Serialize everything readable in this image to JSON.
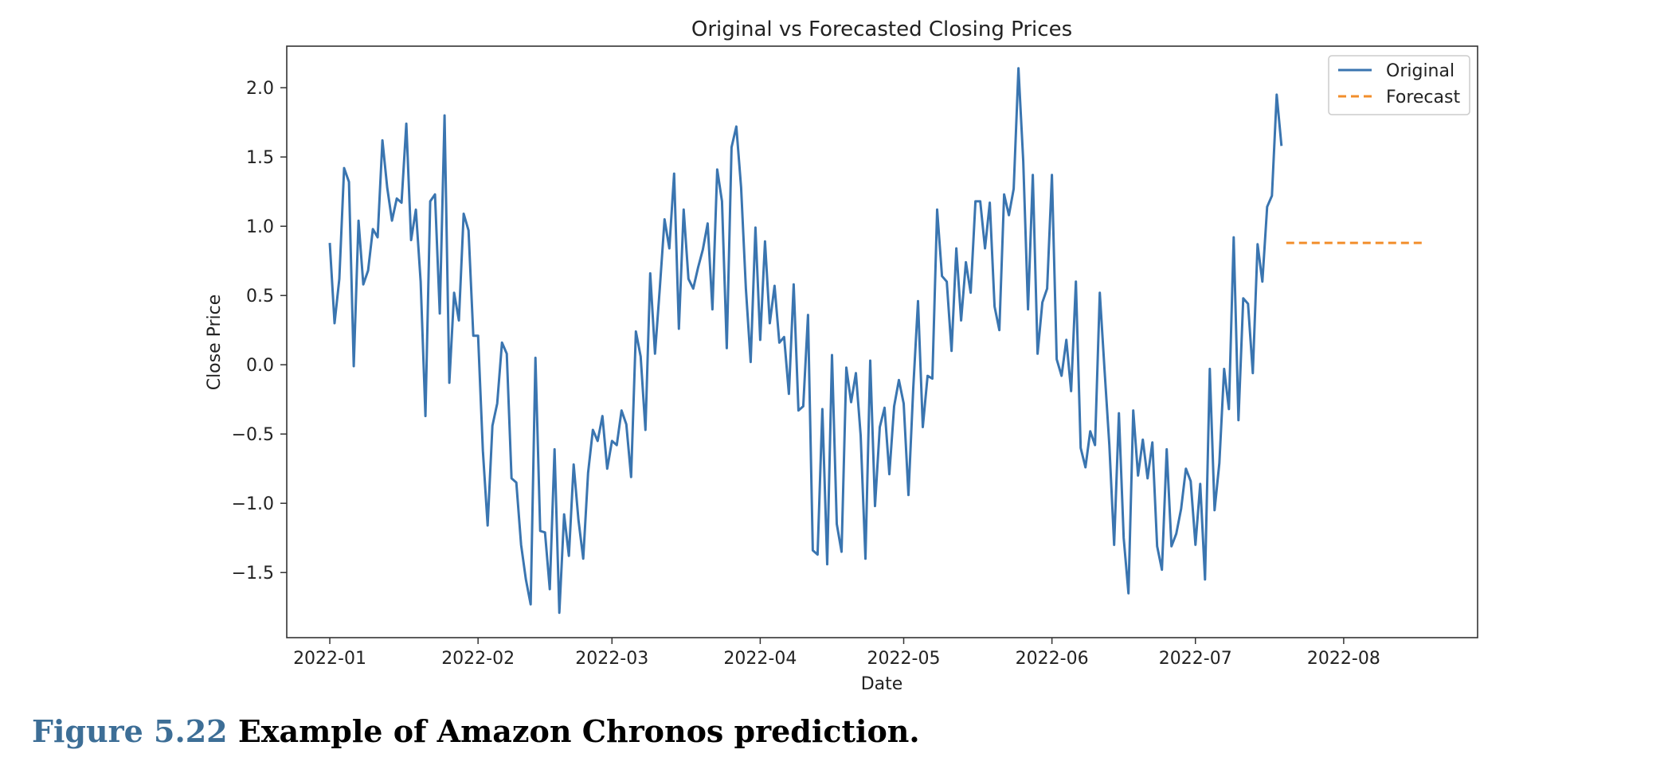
{
  "caption": {
    "figure_number": "Figure 5.22",
    "text": "Example of Amazon Chronos prediction."
  },
  "chart_data": {
    "type": "line",
    "title": "Original vs Forecasted Closing Prices",
    "xlabel": "Date",
    "ylabel": "Close Price",
    "x_ticks": [
      "2022-01",
      "2022-02",
      "2022-03",
      "2022-04",
      "2022-05",
      "2022-06",
      "2022-07",
      "2022-08"
    ],
    "y_ticks": [
      "2.0",
      "1.5",
      "1.0",
      "0.5",
      "0.0",
      "−0.5",
      "−1.0",
      "−1.5"
    ],
    "y_tick_values": [
      2.0,
      1.5,
      1.0,
      0.5,
      0.0,
      -0.5,
      -1.0,
      -1.5
    ],
    "xlim": [
      "2021-12-23",
      "2022-08-29"
    ],
    "ylim": [
      -1.97,
      2.3
    ],
    "grid": false,
    "legend_position": "top-right",
    "series": [
      {
        "name": "Original",
        "color": "#3a75b0",
        "style": "solid",
        "points": [
          [
            "2022-01-01",
            0.88
          ],
          [
            "2022-01-02",
            0.3
          ],
          [
            "2022-01-03",
            0.62
          ],
          [
            "2022-01-04",
            1.42
          ],
          [
            "2022-01-05",
            1.32
          ],
          [
            "2022-01-06",
            -0.01
          ],
          [
            "2022-01-07",
            1.04
          ],
          [
            "2022-01-08",
            0.58
          ],
          [
            "2022-01-09",
            0.68
          ],
          [
            "2022-01-10",
            0.98
          ],
          [
            "2022-01-11",
            0.92
          ],
          [
            "2022-01-12",
            1.62
          ],
          [
            "2022-01-13",
            1.28
          ],
          [
            "2022-01-14",
            1.04
          ],
          [
            "2022-01-15",
            1.2
          ],
          [
            "2022-01-16",
            1.17
          ],
          [
            "2022-01-17",
            1.74
          ],
          [
            "2022-01-18",
            0.9
          ],
          [
            "2022-01-19",
            1.12
          ],
          [
            "2022-01-20",
            0.6
          ],
          [
            "2022-01-21",
            -0.37
          ],
          [
            "2022-01-22",
            1.18
          ],
          [
            "2022-01-23",
            1.23
          ],
          [
            "2022-01-24",
            0.37
          ],
          [
            "2022-01-25",
            1.8
          ],
          [
            "2022-01-26",
            -0.13
          ],
          [
            "2022-01-27",
            0.52
          ],
          [
            "2022-01-28",
            0.32
          ],
          [
            "2022-01-29",
            1.09
          ],
          [
            "2022-01-30",
            0.97
          ],
          [
            "2022-01-31",
            0.21
          ],
          [
            "2022-02-01",
            0.21
          ],
          [
            "2022-02-02",
            -0.62
          ],
          [
            "2022-02-03",
            -1.16
          ],
          [
            "2022-02-04",
            -0.44
          ],
          [
            "2022-02-05",
            -0.28
          ],
          [
            "2022-02-06",
            0.16
          ],
          [
            "2022-02-07",
            0.08
          ],
          [
            "2022-02-08",
            -0.82
          ],
          [
            "2022-02-09",
            -0.85
          ],
          [
            "2022-02-10",
            -1.3
          ],
          [
            "2022-02-11",
            -1.55
          ],
          [
            "2022-02-12",
            -1.73
          ],
          [
            "2022-02-13",
            0.05
          ],
          [
            "2022-02-14",
            -1.2
          ],
          [
            "2022-02-15",
            -1.21
          ],
          [
            "2022-02-16",
            -1.62
          ],
          [
            "2022-02-17",
            -0.61
          ],
          [
            "2022-02-18",
            -1.79
          ],
          [
            "2022-02-19",
            -1.08
          ],
          [
            "2022-02-20",
            -1.38
          ],
          [
            "2022-02-21",
            -0.72
          ],
          [
            "2022-02-22",
            -1.12
          ],
          [
            "2022-02-23",
            -1.4
          ],
          [
            "2022-02-24",
            -0.78
          ],
          [
            "2022-02-25",
            -0.47
          ],
          [
            "2022-02-26",
            -0.55
          ],
          [
            "2022-02-27",
            -0.37
          ],
          [
            "2022-02-28",
            -0.75
          ],
          [
            "2022-03-01",
            -0.55
          ],
          [
            "2022-03-02",
            -0.58
          ],
          [
            "2022-03-03",
            -0.33
          ],
          [
            "2022-03-04",
            -0.43
          ],
          [
            "2022-03-05",
            -0.81
          ],
          [
            "2022-03-06",
            0.24
          ],
          [
            "2022-03-07",
            0.06
          ],
          [
            "2022-03-08",
            -0.47
          ],
          [
            "2022-03-09",
            0.66
          ],
          [
            "2022-03-10",
            0.08
          ],
          [
            "2022-03-11",
            0.55
          ],
          [
            "2022-03-12",
            1.05
          ],
          [
            "2022-03-13",
            0.84
          ],
          [
            "2022-03-14",
            1.38
          ],
          [
            "2022-03-15",
            0.26
          ],
          [
            "2022-03-16",
            1.12
          ],
          [
            "2022-03-17",
            0.62
          ],
          [
            "2022-03-18",
            0.55
          ],
          [
            "2022-03-19",
            0.7
          ],
          [
            "2022-03-20",
            0.83
          ],
          [
            "2022-03-21",
            1.02
          ],
          [
            "2022-03-22",
            0.4
          ],
          [
            "2022-03-23",
            1.41
          ],
          [
            "2022-03-24",
            1.18
          ],
          [
            "2022-03-25",
            0.12
          ],
          [
            "2022-03-26",
            1.57
          ],
          [
            "2022-03-27",
            1.72
          ],
          [
            "2022-03-28",
            1.28
          ],
          [
            "2022-03-29",
            0.55
          ],
          [
            "2022-03-30",
            0.02
          ],
          [
            "2022-03-31",
            0.99
          ],
          [
            "2022-04-01",
            0.18
          ],
          [
            "2022-04-02",
            0.89
          ],
          [
            "2022-04-03",
            0.3
          ],
          [
            "2022-04-04",
            0.57
          ],
          [
            "2022-04-05",
            0.16
          ],
          [
            "2022-04-06",
            0.2
          ],
          [
            "2022-04-07",
            -0.21
          ],
          [
            "2022-04-08",
            0.58
          ],
          [
            "2022-04-09",
            -0.33
          ],
          [
            "2022-04-10",
            -0.3
          ],
          [
            "2022-04-11",
            0.36
          ],
          [
            "2022-04-12",
            -1.34
          ],
          [
            "2022-04-13",
            -1.37
          ],
          [
            "2022-04-14",
            -0.32
          ],
          [
            "2022-04-15",
            -1.44
          ],
          [
            "2022-04-16",
            0.07
          ],
          [
            "2022-04-17",
            -1.15
          ],
          [
            "2022-04-18",
            -1.35
          ],
          [
            "2022-04-19",
            -0.02
          ],
          [
            "2022-04-20",
            -0.27
          ],
          [
            "2022-04-21",
            -0.06
          ],
          [
            "2022-04-22",
            -0.51
          ],
          [
            "2022-04-23",
            -1.4
          ],
          [
            "2022-04-24",
            0.03
          ],
          [
            "2022-04-25",
            -1.02
          ],
          [
            "2022-04-26",
            -0.45
          ],
          [
            "2022-04-27",
            -0.31
          ],
          [
            "2022-04-28",
            -0.79
          ],
          [
            "2022-04-29",
            -0.3
          ],
          [
            "2022-04-30",
            -0.11
          ],
          [
            "2022-05-01",
            -0.28
          ],
          [
            "2022-05-02",
            -0.94
          ],
          [
            "2022-05-03",
            -0.17
          ],
          [
            "2022-05-04",
            0.46
          ],
          [
            "2022-05-05",
            -0.45
          ],
          [
            "2022-05-06",
            -0.08
          ],
          [
            "2022-05-07",
            -0.1
          ],
          [
            "2022-05-08",
            1.12
          ],
          [
            "2022-05-09",
            0.64
          ],
          [
            "2022-05-10",
            0.6
          ],
          [
            "2022-05-11",
            0.1
          ],
          [
            "2022-05-12",
            0.84
          ],
          [
            "2022-05-13",
            0.32
          ],
          [
            "2022-05-14",
            0.74
          ],
          [
            "2022-05-15",
            0.52
          ],
          [
            "2022-05-16",
            1.18
          ],
          [
            "2022-05-17",
            1.18
          ],
          [
            "2022-05-18",
            0.84
          ],
          [
            "2022-05-19",
            1.17
          ],
          [
            "2022-05-20",
            0.42
          ],
          [
            "2022-05-21",
            0.25
          ],
          [
            "2022-05-22",
            1.23
          ],
          [
            "2022-05-23",
            1.08
          ],
          [
            "2022-05-24",
            1.27
          ],
          [
            "2022-05-25",
            2.14
          ],
          [
            "2022-05-26",
            1.47
          ],
          [
            "2022-05-27",
            0.4
          ],
          [
            "2022-05-28",
            1.37
          ],
          [
            "2022-05-29",
            0.08
          ],
          [
            "2022-05-30",
            0.45
          ],
          [
            "2022-05-31",
            0.55
          ],
          [
            "2022-06-01",
            1.37
          ],
          [
            "2022-06-02",
            0.04
          ],
          [
            "2022-06-03",
            -0.08
          ],
          [
            "2022-06-04",
            0.18
          ],
          [
            "2022-06-05",
            -0.19
          ],
          [
            "2022-06-06",
            0.6
          ],
          [
            "2022-06-07",
            -0.6
          ],
          [
            "2022-06-08",
            -0.74
          ],
          [
            "2022-06-09",
            -0.48
          ],
          [
            "2022-06-10",
            -0.58
          ],
          [
            "2022-06-11",
            0.52
          ],
          [
            "2022-06-12",
            -0.04
          ],
          [
            "2022-06-13",
            -0.58
          ],
          [
            "2022-06-14",
            -1.3
          ],
          [
            "2022-06-15",
            -0.35
          ],
          [
            "2022-06-16",
            -1.25
          ],
          [
            "2022-06-17",
            -1.65
          ],
          [
            "2022-06-18",
            -0.33
          ],
          [
            "2022-06-19",
            -0.8
          ],
          [
            "2022-06-20",
            -0.54
          ],
          [
            "2022-06-21",
            -0.82
          ],
          [
            "2022-06-22",
            -0.56
          ],
          [
            "2022-06-23",
            -1.31
          ],
          [
            "2022-06-24",
            -1.48
          ],
          [
            "2022-06-25",
            -0.61
          ],
          [
            "2022-06-26",
            -1.31
          ],
          [
            "2022-06-27",
            -1.22
          ],
          [
            "2022-06-28",
            -1.04
          ],
          [
            "2022-06-29",
            -0.75
          ],
          [
            "2022-06-30",
            -0.84
          ],
          [
            "2022-07-01",
            -1.3
          ],
          [
            "2022-07-02",
            -0.86
          ],
          [
            "2022-07-03",
            -1.55
          ],
          [
            "2022-07-04",
            -0.03
          ],
          [
            "2022-07-05",
            -1.05
          ],
          [
            "2022-07-06",
            -0.71
          ],
          [
            "2022-07-07",
            -0.03
          ],
          [
            "2022-07-08",
            -0.32
          ],
          [
            "2022-07-09",
            0.92
          ],
          [
            "2022-07-10",
            -0.4
          ],
          [
            "2022-07-11",
            0.48
          ],
          [
            "2022-07-12",
            0.44
          ],
          [
            "2022-07-13",
            -0.06
          ],
          [
            "2022-07-14",
            0.87
          ],
          [
            "2022-07-15",
            0.6
          ],
          [
            "2022-07-16",
            1.14
          ],
          [
            "2022-07-17",
            1.22
          ],
          [
            "2022-07-18",
            1.95
          ],
          [
            "2022-07-19",
            1.58
          ]
        ]
      },
      {
        "name": "Forecast",
        "color": "#f28e2b",
        "style": "dashed",
        "points": [
          [
            "2022-07-20",
            0.88
          ],
          [
            "2022-08-18",
            0.88
          ]
        ]
      }
    ]
  }
}
